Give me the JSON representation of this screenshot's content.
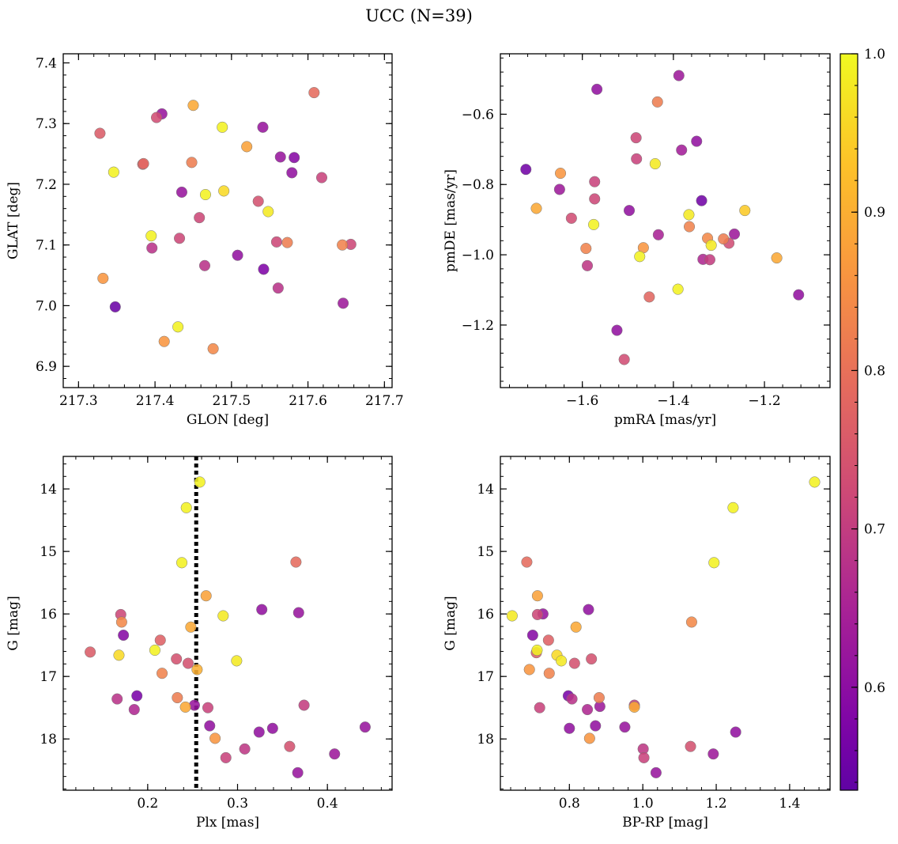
{
  "figure": {
    "title": "UCC (N=39)"
  },
  "colorbar": {
    "range": [
      0.535,
      1.0
    ],
    "ticks": [
      0.6,
      0.7,
      0.8,
      0.9,
      1.0
    ],
    "tick_labels": [
      "0.6",
      "0.7",
      "0.8",
      "0.9",
      "1.0"
    ],
    "colormap": "plasma"
  },
  "chart_data": [
    {
      "type": "scatter",
      "xlabel": "GLON [deg]",
      "ylabel": "GLAT [deg]",
      "xlim": [
        217.28,
        217.71
      ],
      "ylim": [
        6.865,
        7.415
      ],
      "yinvert": false,
      "xticks": [
        217.3,
        217.4,
        217.5,
        217.6,
        217.7
      ],
      "xtick_labels": [
        "217.3",
        "217.4",
        "217.5",
        "217.6",
        "217.7"
      ],
      "yticks": [
        6.9,
        7.0,
        7.1,
        7.2,
        7.3,
        7.4
      ],
      "ytick_labels": [
        "6.9",
        "7.0",
        "7.1",
        "7.2",
        "7.3",
        "7.4"
      ],
      "points": [
        {
          "x": 217.328,
          "y": 7.284,
          "c": 0.76
        },
        {
          "x": 217.332,
          "y": 7.045,
          "c": 0.86
        },
        {
          "x": 217.346,
          "y": 7.22,
          "c": 0.99
        },
        {
          "x": 217.348,
          "y": 6.998,
          "c": 0.55
        },
        {
          "x": 217.385,
          "y": 7.234,
          "c": 0.78
        },
        {
          "x": 217.395,
          "y": 7.115,
          "c": 0.99
        },
        {
          "x": 217.396,
          "y": 7.095,
          "c": 0.68
        },
        {
          "x": 217.402,
          "y": 7.31,
          "c": 0.73
        },
        {
          "x": 217.409,
          "y": 7.316,
          "c": 0.62
        },
        {
          "x": 217.412,
          "y": 6.941,
          "c": 0.86
        },
        {
          "x": 217.43,
          "y": 6.965,
          "c": 0.99
        },
        {
          "x": 217.432,
          "y": 7.111,
          "c": 0.72
        },
        {
          "x": 217.435,
          "y": 7.187,
          "c": 0.62
        },
        {
          "x": 217.448,
          "y": 7.236,
          "c": 0.82
        },
        {
          "x": 217.45,
          "y": 7.33,
          "c": 0.89
        },
        {
          "x": 217.458,
          "y": 7.145,
          "c": 0.72
        },
        {
          "x": 217.465,
          "y": 7.066,
          "c": 0.68
        },
        {
          "x": 217.466,
          "y": 7.183,
          "c": 0.99
        },
        {
          "x": 217.476,
          "y": 6.929,
          "c": 0.84
        },
        {
          "x": 217.488,
          "y": 7.294,
          "c": 0.99
        },
        {
          "x": 217.49,
          "y": 7.189,
          "c": 0.96
        },
        {
          "x": 217.508,
          "y": 7.083,
          "c": 0.61
        },
        {
          "x": 217.52,
          "y": 7.262,
          "c": 0.88
        },
        {
          "x": 217.535,
          "y": 7.172,
          "c": 0.74
        },
        {
          "x": 217.541,
          "y": 7.294,
          "c": 0.62
        },
        {
          "x": 217.542,
          "y": 7.06,
          "c": 0.58
        },
        {
          "x": 217.548,
          "y": 7.155,
          "c": 0.98
        },
        {
          "x": 217.559,
          "y": 7.105,
          "c": 0.72
        },
        {
          "x": 217.561,
          "y": 7.029,
          "c": 0.68
        },
        {
          "x": 217.564,
          "y": 7.245,
          "c": 0.62
        },
        {
          "x": 217.573,
          "y": 7.104,
          "c": 0.82
        },
        {
          "x": 217.579,
          "y": 7.219,
          "c": 0.61
        },
        {
          "x": 217.582,
          "y": 7.244,
          "c": 0.59
        },
        {
          "x": 217.608,
          "y": 7.351,
          "c": 0.79
        },
        {
          "x": 217.618,
          "y": 7.211,
          "c": 0.71
        },
        {
          "x": 217.645,
          "y": 7.1,
          "c": 0.83
        },
        {
          "x": 217.646,
          "y": 7.004,
          "c": 0.63
        },
        {
          "x": 217.656,
          "y": 7.101,
          "c": 0.72
        },
        {
          "x": 217.384,
          "y": 7.233,
          "c": 0.77
        }
      ]
    },
    {
      "type": "scatter",
      "xlabel": "pmRA [mas/yr]",
      "ylabel": "pmDE [mas/yr]",
      "xlim": [
        -1.78,
        -1.056
      ],
      "ylim": [
        -1.378,
        -0.428
      ],
      "yinvert": false,
      "xticks": [
        -1.6,
        -1.4,
        -1.2
      ],
      "xtick_labels": [
        "−1.6",
        "−1.4",
        "−1.2"
      ],
      "yticks": [
        -1.2,
        -1.0,
        -0.8,
        -0.6
      ],
      "ytick_labels": [
        "−1.2",
        "−1.0",
        "−0.8",
        "−0.6"
      ],
      "points": [
        {
          "x": -1.724,
          "y": -0.757,
          "c": 0.56
        },
        {
          "x": -1.701,
          "y": -0.868,
          "c": 0.89
        },
        {
          "x": -1.65,
          "y": -0.814,
          "c": 0.63
        },
        {
          "x": -1.648,
          "y": -0.768,
          "c": 0.86
        },
        {
          "x": -1.624,
          "y": -0.896,
          "c": 0.73
        },
        {
          "x": -1.592,
          "y": -0.982,
          "c": 0.83
        },
        {
          "x": -1.589,
          "y": -1.031,
          "c": 0.69
        },
        {
          "x": -1.575,
          "y": -0.914,
          "c": 0.99
        },
        {
          "x": -1.573,
          "y": -0.792,
          "c": 0.71
        },
        {
          "x": -1.573,
          "y": -0.841,
          "c": 0.72
        },
        {
          "x": -1.568,
          "y": -0.529,
          "c": 0.61
        },
        {
          "x": -1.524,
          "y": -1.215,
          "c": 0.61
        },
        {
          "x": -1.508,
          "y": -1.298,
          "c": 0.73
        },
        {
          "x": -1.497,
          "y": -0.874,
          "c": 0.61
        },
        {
          "x": -1.482,
          "y": -0.667,
          "c": 0.72
        },
        {
          "x": -1.481,
          "y": -0.727,
          "c": 0.71
        },
        {
          "x": -1.474,
          "y": -1.005,
          "c": 0.99
        },
        {
          "x": -1.466,
          "y": -0.98,
          "c": 0.86
        },
        {
          "x": -1.453,
          "y": -1.12,
          "c": 0.78
        },
        {
          "x": -1.44,
          "y": -0.741,
          "c": 0.98
        },
        {
          "x": -1.435,
          "y": -0.565,
          "c": 0.82
        },
        {
          "x": -1.433,
          "y": -0.943,
          "c": 0.65
        },
        {
          "x": -1.39,
          "y": -1.098,
          "c": 0.99
        },
        {
          "x": -1.388,
          "y": -0.49,
          "c": 0.63
        },
        {
          "x": -1.382,
          "y": -0.702,
          "c": 0.64
        },
        {
          "x": -1.366,
          "y": -0.886,
          "c": 0.98
        },
        {
          "x": -1.365,
          "y": -0.92,
          "c": 0.83
        },
        {
          "x": -1.349,
          "y": -0.677,
          "c": 0.61
        },
        {
          "x": -1.338,
          "y": -0.846,
          "c": 0.56
        },
        {
          "x": -1.335,
          "y": -1.013,
          "c": 0.66
        },
        {
          "x": -1.325,
          "y": -0.953,
          "c": 0.84
        },
        {
          "x": -1.32,
          "y": -1.014,
          "c": 0.7
        },
        {
          "x": -1.317,
          "y": -0.973,
          "c": 0.98
        },
        {
          "x": -1.29,
          "y": -0.955,
          "c": 0.82
        },
        {
          "x": -1.278,
          "y": -0.967,
          "c": 0.73
        },
        {
          "x": -1.266,
          "y": -0.941,
          "c": 0.63
        },
        {
          "x": -1.243,
          "y": -0.874,
          "c": 0.94
        },
        {
          "x": -1.173,
          "y": -1.009,
          "c": 0.89
        },
        {
          "x": -1.125,
          "y": -1.114,
          "c": 0.61
        }
      ]
    },
    {
      "type": "scatter",
      "xlabel": "Plx [mas]",
      "ylabel": "G [mag]",
      "xlim": [
        0.106,
        0.472
      ],
      "ylim": [
        13.48,
        18.82
      ],
      "yinvert": true,
      "xticks": [
        0.2,
        0.3,
        0.4
      ],
      "xtick_labels": [
        "0.2",
        "0.3",
        "0.4"
      ],
      "yticks": [
        14,
        15,
        16,
        17,
        18
      ],
      "ytick_labels": [
        "14",
        "15",
        "16",
        "17",
        "18"
      ],
      "vline": {
        "x": 0.254,
        "style": "dotted",
        "color": "#000000"
      },
      "points": [
        {
          "x": 0.136,
          "y": 16.61,
          "c": 0.76
        },
        {
          "x": 0.166,
          "y": 17.36,
          "c": 0.68
        },
        {
          "x": 0.168,
          "y": 16.66,
          "c": 0.96
        },
        {
          "x": 0.17,
          "y": 16.01,
          "c": 0.72
        },
        {
          "x": 0.171,
          "y": 16.13,
          "c": 0.84
        },
        {
          "x": 0.173,
          "y": 16.34,
          "c": 0.59
        },
        {
          "x": 0.185,
          "y": 17.53,
          "c": 0.66
        },
        {
          "x": 0.188,
          "y": 17.31,
          "c": 0.57
        },
        {
          "x": 0.208,
          "y": 16.58,
          "c": 0.99
        },
        {
          "x": 0.214,
          "y": 16.42,
          "c": 0.77
        },
        {
          "x": 0.216,
          "y": 16.95,
          "c": 0.83
        },
        {
          "x": 0.232,
          "y": 16.72,
          "c": 0.74
        },
        {
          "x": 0.233,
          "y": 17.34,
          "c": 0.82
        },
        {
          "x": 0.238,
          "y": 15.18,
          "c": 0.99
        },
        {
          "x": 0.242,
          "y": 17.49,
          "c": 0.89
        },
        {
          "x": 0.243,
          "y": 14.3,
          "c": 0.99
        },
        {
          "x": 0.245,
          "y": 16.79,
          "c": 0.74
        },
        {
          "x": 0.248,
          "y": 16.21,
          "c": 0.89
        },
        {
          "x": 0.252,
          "y": 17.46,
          "c": 0.62
        },
        {
          "x": 0.255,
          "y": 16.89,
          "c": 0.9
        },
        {
          "x": 0.258,
          "y": 13.89,
          "c": 0.99
        },
        {
          "x": 0.265,
          "y": 15.71,
          "c": 0.88
        },
        {
          "x": 0.267,
          "y": 17.5,
          "c": 0.71
        },
        {
          "x": 0.269,
          "y": 17.79,
          "c": 0.61
        },
        {
          "x": 0.275,
          "y": 17.99,
          "c": 0.86
        },
        {
          "x": 0.284,
          "y": 16.03,
          "c": 0.98
        },
        {
          "x": 0.287,
          "y": 18.3,
          "c": 0.71
        },
        {
          "x": 0.299,
          "y": 16.75,
          "c": 0.98
        },
        {
          "x": 0.308,
          "y": 18.16,
          "c": 0.69
        },
        {
          "x": 0.324,
          "y": 17.89,
          "c": 0.61
        },
        {
          "x": 0.327,
          "y": 15.93,
          "c": 0.61
        },
        {
          "x": 0.339,
          "y": 17.83,
          "c": 0.61
        },
        {
          "x": 0.358,
          "y": 18.12,
          "c": 0.74
        },
        {
          "x": 0.365,
          "y": 15.17,
          "c": 0.79
        },
        {
          "x": 0.367,
          "y": 18.54,
          "c": 0.62
        },
        {
          "x": 0.368,
          "y": 15.98,
          "c": 0.62
        },
        {
          "x": 0.374,
          "y": 17.46,
          "c": 0.7
        },
        {
          "x": 0.408,
          "y": 18.24,
          "c": 0.63
        },
        {
          "x": 0.442,
          "y": 17.81,
          "c": 0.62
        }
      ]
    },
    {
      "type": "scatter",
      "xlabel": "BP-RP [mag]",
      "ylabel": "G [mag]",
      "xlim": [
        0.612,
        1.51
      ],
      "ylim": [
        13.48,
        18.82
      ],
      "yinvert": true,
      "xticks": [
        0.8,
        1.0,
        1.2,
        1.4
      ],
      "xtick_labels": [
        "0.8",
        "1.0",
        "1.2",
        "1.4"
      ],
      "yticks": [
        14,
        15,
        16,
        17,
        18
      ],
      "ytick_labels": [
        "14",
        "15",
        "16",
        "17",
        "18"
      ],
      "points": [
        {
          "x": 0.644,
          "y": 16.03,
          "c": 0.98
        },
        {
          "x": 0.684,
          "y": 15.17,
          "c": 0.79
        },
        {
          "x": 0.691,
          "y": 16.89,
          "c": 0.86
        },
        {
          "x": 0.7,
          "y": 16.34,
          "c": 0.59
        },
        {
          "x": 0.71,
          "y": 16.62,
          "c": 0.76
        },
        {
          "x": 0.712,
          "y": 16.58,
          "c": 0.99
        },
        {
          "x": 0.713,
          "y": 16.01,
          "c": 0.72
        },
        {
          "x": 0.713,
          "y": 15.71,
          "c": 0.88
        },
        {
          "x": 0.719,
          "y": 17.5,
          "c": 0.71
        },
        {
          "x": 0.728,
          "y": 16.0,
          "c": 0.62
        },
        {
          "x": 0.743,
          "y": 16.42,
          "c": 0.77
        },
        {
          "x": 0.745,
          "y": 16.95,
          "c": 0.83
        },
        {
          "x": 0.766,
          "y": 16.66,
          "c": 0.96
        },
        {
          "x": 0.778,
          "y": 16.75,
          "c": 0.98
        },
        {
          "x": 0.797,
          "y": 17.31,
          "c": 0.57
        },
        {
          "x": 0.8,
          "y": 17.83,
          "c": 0.61
        },
        {
          "x": 0.807,
          "y": 17.36,
          "c": 0.68
        },
        {
          "x": 0.814,
          "y": 16.79,
          "c": 0.74
        },
        {
          "x": 0.818,
          "y": 16.21,
          "c": 0.89
        },
        {
          "x": 0.849,
          "y": 17.53,
          "c": 0.66
        },
        {
          "x": 0.852,
          "y": 15.93,
          "c": 0.61
        },
        {
          "x": 0.855,
          "y": 17.99,
          "c": 0.86
        },
        {
          "x": 0.86,
          "y": 16.72,
          "c": 0.74
        },
        {
          "x": 0.871,
          "y": 17.79,
          "c": 0.61
        },
        {
          "x": 0.881,
          "y": 17.34,
          "c": 0.82
        },
        {
          "x": 0.883,
          "y": 17.48,
          "c": 0.63
        },
        {
          "x": 0.951,
          "y": 17.81,
          "c": 0.62
        },
        {
          "x": 0.977,
          "y": 17.46,
          "c": 0.7
        },
        {
          "x": 0.977,
          "y": 17.49,
          "c": 0.89
        },
        {
          "x": 1.001,
          "y": 18.16,
          "c": 0.69
        },
        {
          "x": 1.003,
          "y": 18.3,
          "c": 0.71
        },
        {
          "x": 1.036,
          "y": 18.54,
          "c": 0.62
        },
        {
          "x": 1.13,
          "y": 18.12,
          "c": 0.74
        },
        {
          "x": 1.133,
          "y": 16.13,
          "c": 0.84
        },
        {
          "x": 1.192,
          "y": 18.24,
          "c": 0.63
        },
        {
          "x": 1.194,
          "y": 15.18,
          "c": 0.99
        },
        {
          "x": 1.246,
          "y": 14.3,
          "c": 0.99
        },
        {
          "x": 1.253,
          "y": 17.89,
          "c": 0.61
        },
        {
          "x": 1.468,
          "y": 13.89,
          "c": 0.99
        }
      ]
    }
  ]
}
